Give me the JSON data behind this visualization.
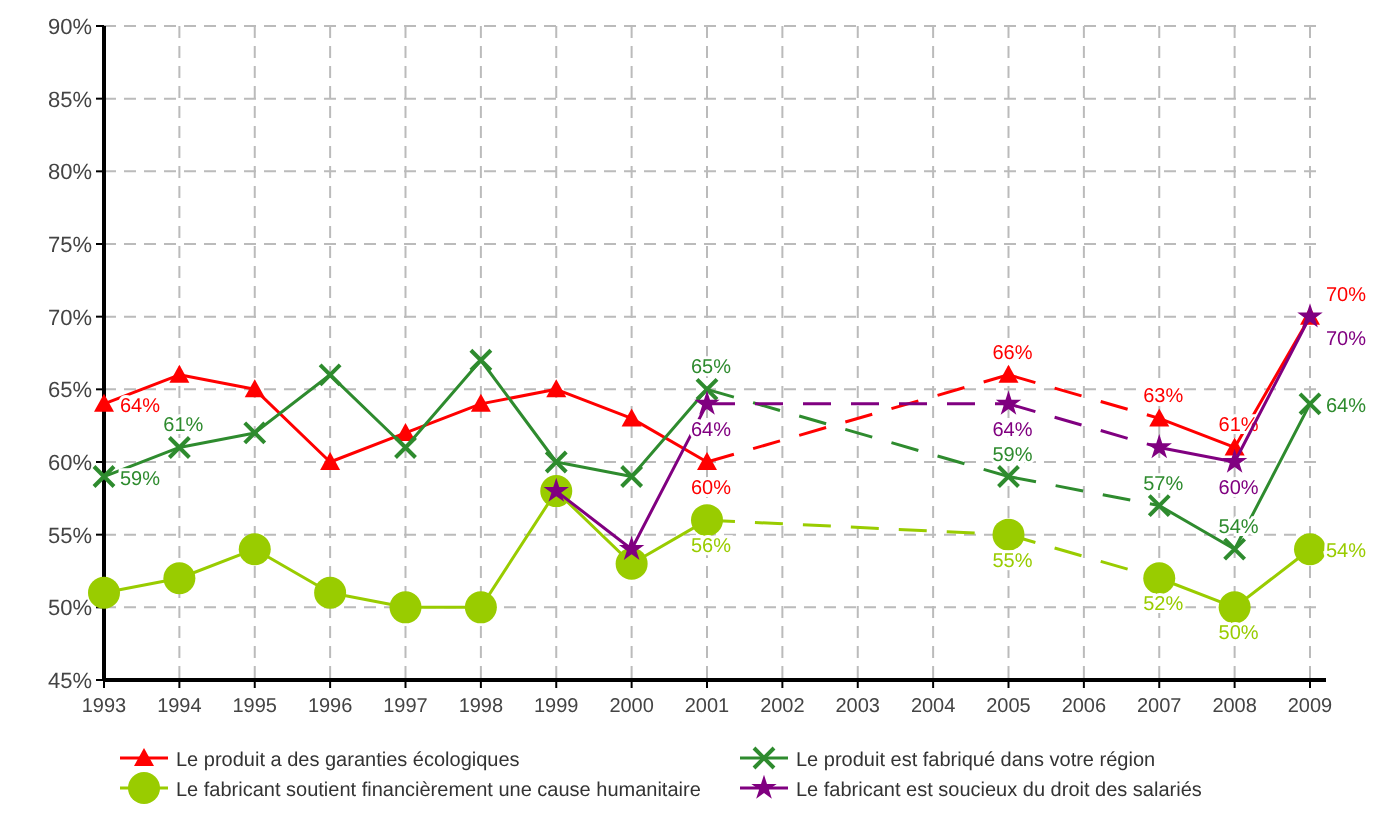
{
  "chart_data": {
    "type": "line",
    "categories": [
      "1993",
      "1994",
      "1995",
      "1996",
      "1997",
      "1998",
      "1999",
      "2000",
      "2001",
      "2002",
      "2003",
      "2004",
      "2005",
      "2006",
      "2007",
      "2008",
      "2009"
    ],
    "ylim": [
      45,
      90
    ],
    "yticks": [
      {
        "value": 45,
        "label": "45%"
      },
      {
        "value": 50,
        "label": "50%"
      },
      {
        "value": 55,
        "label": "55%"
      },
      {
        "value": 60,
        "label": "60%"
      },
      {
        "value": 65,
        "label": "65%"
      },
      {
        "value": 70,
        "label": "70%"
      },
      {
        "value": 75,
        "label": "75%"
      },
      {
        "value": 80,
        "label": "80%"
      },
      {
        "value": 85,
        "label": "85%"
      },
      {
        "value": 90,
        "label": "90%"
      }
    ],
    "grid": true,
    "legend": "bottom",
    "series": [
      {
        "name": "Le produit a des garanties écologiques",
        "color": "#ff0000",
        "marker": "triangle",
        "values": [
          64,
          66,
          65,
          60,
          62,
          64,
          65,
          63,
          60,
          null,
          null,
          null,
          66,
          null,
          63,
          61,
          70
        ],
        "value_labels": [
          "64%",
          null,
          null,
          null,
          null,
          null,
          null,
          null,
          "60%",
          null,
          null,
          null,
          "66%",
          null,
          "63%",
          "61%",
          "70%"
        ]
      },
      {
        "name": "Le produit est fabriqué dans votre région",
        "color": "#2e8b2e",
        "marker": "cross",
        "values": [
          59,
          61,
          62,
          66,
          61,
          67,
          60,
          59,
          65,
          null,
          null,
          null,
          59,
          null,
          57,
          54,
          64
        ],
        "value_labels": [
          "59%",
          "61%",
          null,
          null,
          null,
          null,
          null,
          null,
          "65%",
          null,
          null,
          null,
          "59%",
          null,
          "57%",
          "54%",
          "64%"
        ]
      },
      {
        "name": "Le fabricant soutient financièrement une cause humanitaire",
        "color": "#99cc00",
        "marker": "circle",
        "values": [
          51,
          52,
          54,
          51,
          50,
          50,
          58,
          53,
          56,
          null,
          null,
          null,
          55,
          null,
          52,
          50,
          54
        ],
        "value_labels": [
          null,
          null,
          null,
          null,
          null,
          null,
          null,
          null,
          "56%",
          null,
          null,
          null,
          "55%",
          null,
          "52%",
          "50%",
          "54%"
        ]
      },
      {
        "name": "Le fabricant est soucieux du droit des salariés",
        "color": "#800080",
        "marker": "star",
        "values": [
          null,
          null,
          null,
          null,
          null,
          null,
          58,
          54,
          64,
          null,
          null,
          null,
          64,
          null,
          61,
          60,
          70
        ],
        "value_labels": [
          null,
          null,
          null,
          null,
          null,
          null,
          null,
          null,
          "64%",
          null,
          null,
          null,
          "64%",
          null,
          null,
          "60%",
          "70%"
        ]
      }
    ]
  }
}
